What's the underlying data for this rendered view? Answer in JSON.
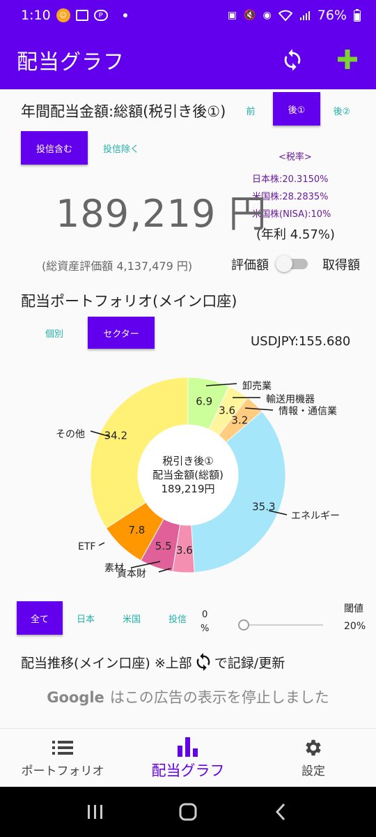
{
  "status_bar": {
    "time": "1:10",
    "battery": "76%"
  },
  "app_bar": {
    "title": "配当グラフ"
  },
  "annual": {
    "title": "年間配当金額:総額(税引き後①)",
    "tabs": [
      "前",
      "後①",
      "後②"
    ],
    "selected_tab": "後①",
    "fund_tabs": [
      "投信含む",
      "投信除く"
    ],
    "selected_fund_tab": "投信含む",
    "amount": "189,219 円",
    "yield": "(年利 4.57%)",
    "total_assets": "(総資産評価額 4,137,479 円)",
    "toggle_left": "評価額",
    "toggle_right": "取得額"
  },
  "tax": {
    "header": "<税率>",
    "lines": [
      "日本株:20.3150%",
      "米国株:28.2835%",
      "米国株(NISA):10%"
    ]
  },
  "portfolio": {
    "title": "配当ポートフォリオ(メイン口座)",
    "tabs": [
      "個別",
      "セクター"
    ],
    "selected_tab": "セクター",
    "usdjpy": "USDJPY:155.680"
  },
  "chart_data": {
    "type": "pie",
    "center_text": [
      "税引き後①",
      "配当金額(総額)",
      "189,219円"
    ],
    "slices": [
      {
        "label": "卸売業",
        "value": 6.9,
        "color": "#ccff99"
      },
      {
        "label": "輸送用機器",
        "value": 3.6,
        "color": "#fff59d"
      },
      {
        "label": "情報・通信業",
        "value": 3.2,
        "color": "#ffcc80"
      },
      {
        "label": "エネルギー",
        "value": 35.3,
        "color": "#a6e6fa"
      },
      {
        "label": "資本財",
        "value": 3.6,
        "color": "#f48fb1"
      },
      {
        "label": "素材",
        "value": 5.5,
        "color": "#e0609a"
      },
      {
        "label": "ETF",
        "value": 7.8,
        "color": "#ff9800"
      },
      {
        "label": "その他",
        "value": 34.2,
        "color": "#fff176"
      }
    ]
  },
  "filters": {
    "tabs": [
      "全て",
      "日本",
      "米国",
      "投信"
    ],
    "selected_tab": "全て",
    "threshold_min": "0",
    "threshold_min_unit": "%",
    "threshold_label": "閾値",
    "threshold_value": "20%"
  },
  "trend": {
    "title_prefix": "配当推移(メイン口座) ※上部",
    "title_suffix": "で記録/更新"
  },
  "ad": {
    "brand": "Google",
    "text": "はこの広告の表示を停止しました"
  },
  "bottom_nav": [
    {
      "label": "ポートフォリオ",
      "icon": "list-icon"
    },
    {
      "label": "配当グラフ",
      "icon": "bar-chart-icon"
    },
    {
      "label": "設定",
      "icon": "gear-icon"
    }
  ],
  "colors": {
    "primary": "#6200ee",
    "accent_tab_text": "#20b2aa",
    "add_icon": "#7cd22e"
  }
}
